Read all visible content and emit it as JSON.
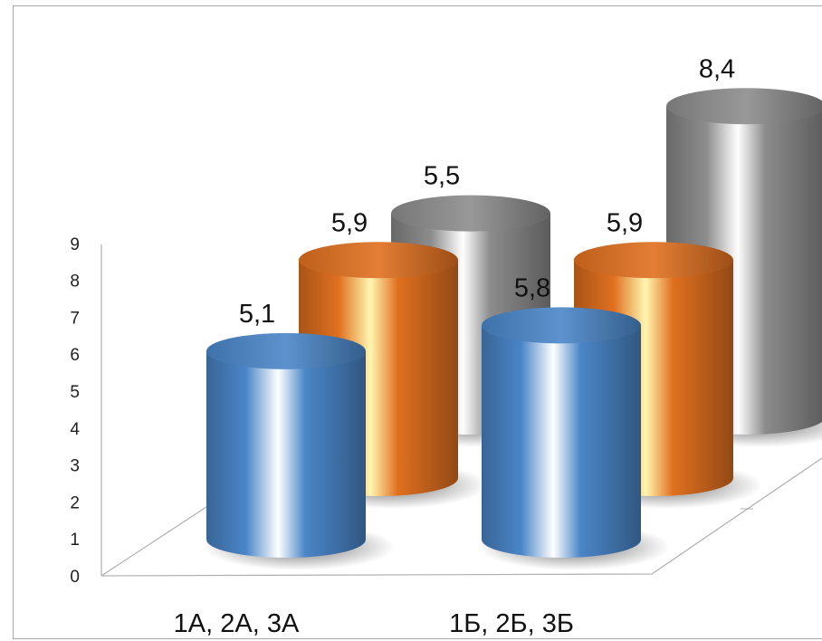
{
  "chart_data": {
    "type": "bar",
    "style": "3d-cylinder",
    "categories": [
      "1А, 2А, 3А",
      "1Б, 2Б, 3Б"
    ],
    "series": [
      {
        "values": [
          5.1,
          5.8
        ],
        "labels": [
          "5,1",
          "5,8"
        ],
        "color": "#4a86c8"
      },
      {
        "values": [
          5.9,
          5.9
        ],
        "labels": [
          "5,9",
          "5,9"
        ],
        "color": "#e0701f"
      },
      {
        "values": [
          5.5,
          8.4
        ],
        "labels": [
          "5,5",
          "8,4"
        ],
        "color": "#8c8c8c"
      }
    ],
    "ylim": [
      0,
      9
    ],
    "yticks": [
      "0",
      "1",
      "2",
      "3",
      "4",
      "5",
      "6",
      "7",
      "8",
      "9"
    ],
    "grid": false,
    "legend": "none"
  }
}
